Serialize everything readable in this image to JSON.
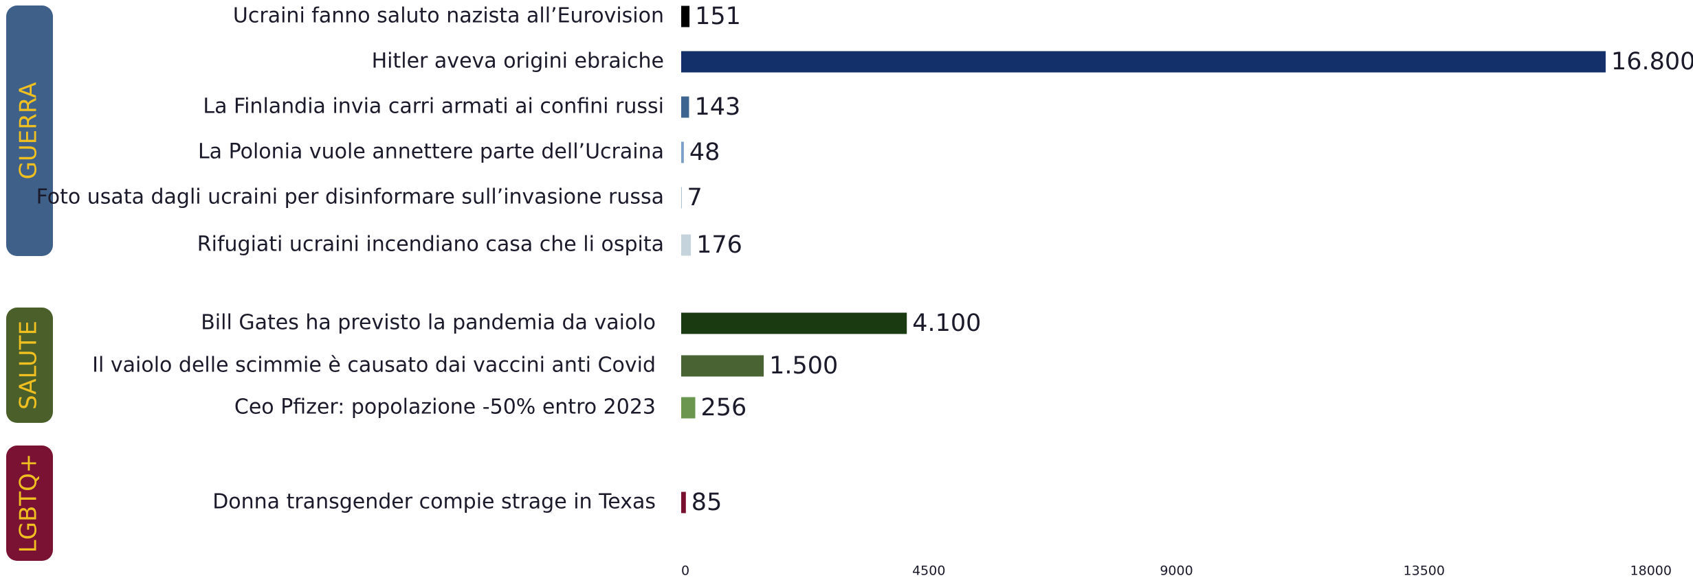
{
  "chart_data": {
    "type": "bar",
    "groups": [
      {
        "name": "GUERRA",
        "color": "#3f6088",
        "categories": [
          "Ucraini fanno saluto nazista all’Eurovision",
          "Hitler aveva origini ebraiche",
          "La Finlandia invia carri armati ai confini russi",
          "La Polonia vuole annettere parte dell’Ucraina",
          "Foto usata dagli ucraini per disinformare sull’invasione russa",
          "Rifugiati ucraini incendiano casa che li ospita"
        ],
        "values": [
          151,
          16800,
          143,
          48,
          7,
          176
        ],
        "value_labels": [
          "151",
          "16.800",
          "143",
          "48",
          "7",
          "176"
        ],
        "colors": [
          "#000000",
          "#14306a",
          "#3d6590",
          "#7aa0c8",
          "#a9c4da",
          "#c5d4dc"
        ]
      },
      {
        "name": "SALUTE",
        "color": "#4b5f2b",
        "categories": [
          "Bill Gates ha previsto la pandemia da vaiolo",
          "Il vaiolo delle scimmie è causato dai vaccini anti Covid",
          "Ceo Pfizer: popolazione -50% entro 2023"
        ],
        "values": [
          4100,
          1500,
          256
        ],
        "value_labels": [
          "4.100",
          "1.500",
          "256"
        ],
        "colors": [
          "#1a3a12",
          "#4a6332",
          "#6a9650"
        ]
      },
      {
        "name": "LGBTQ+",
        "color": "#7a1233",
        "categories": [
          "Donna transgender compie strage in Texas"
        ],
        "values": [
          85
        ],
        "value_labels": [
          "85"
        ],
        "colors": [
          "#7a1030"
        ]
      }
    ],
    "xlim": [
      0,
      18000
    ],
    "xticks": [
      0,
      4500,
      9000,
      13500,
      18000
    ]
  }
}
